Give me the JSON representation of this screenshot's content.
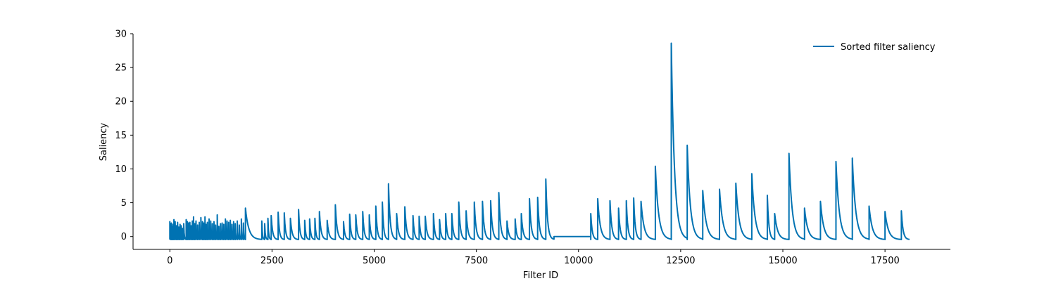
{
  "chart_data": {
    "type": "line",
    "title": "",
    "xlabel": "Filter ID",
    "ylabel": "Saliency",
    "xlim": [
      -900,
      19100
    ],
    "ylim": [
      -1.9,
      30
    ],
    "xticks": [
      0,
      2500,
      5000,
      7500,
      10000,
      12500,
      15000,
      17500
    ],
    "xtick_labels": [
      "0",
      "2500",
      "5000",
      "7500",
      "10000",
      "12500",
      "15000",
      "17500"
    ],
    "yticks": [
      0,
      5,
      10,
      15,
      20,
      25,
      30
    ],
    "ytick_labels": [
      "0",
      "5",
      "10",
      "15",
      "20",
      "25",
      "30"
    ],
    "grid": false,
    "legend_position": "top-right",
    "series": [
      {
        "name": "Sorted filter saliency",
        "color": "#0072b2",
        "baseline": -0.45,
        "segments": [
          {
            "x": [
              0,
              20,
              40,
              60,
              80,
              100,
              130,
              160,
              190,
              220,
              250,
              280,
              310,
              340,
              400,
              430,
              460,
              490,
              520,
              550,
              580,
              610,
              640,
              680,
              720,
              760,
              800,
              830,
              860,
              890,
              920,
              960,
              1000,
              1040,
              1080,
              1120,
              1160,
              1200,
              1240,
              1280,
              1320,
              1360,
              1400,
              1440,
              1480,
              1520,
              1560,
              1600,
              1650,
              1700,
              1750,
              1800,
              1850
            ],
            "peaks": [
              2.2,
              1.9,
              2.0,
              1.5,
              1.8,
              2.5,
              2.2,
              1.6,
              2.1,
              1.4,
              1.8,
              1.6,
              1.2,
              1.9,
              2.5,
              2.2,
              2.0,
              2.1,
              1.6,
              2.3,
              2.9,
              1.9,
              2.3,
              1.7,
              2.1,
              2.8,
              2.2,
              2.0,
              2.9,
              1.8,
              2.1,
              2.6,
              2.3,
              1.9,
              2.2,
              1.7,
              3.2,
              1.5,
              1.9,
              2.0,
              1.8,
              2.6,
              2.3,
              2.1,
              2.4,
              1.8,
              2.2,
              1.9,
              2.3,
              1.7,
              2.6,
              2.0,
              4.2
            ]
          },
          {
            "x": [
              2250,
              2320,
              2400,
              2480,
              2650,
              2800,
              2950,
              3150,
              3300,
              3420,
              3550,
              3660,
              3850,
              4050,
              4250,
              4400,
              4550,
              4720,
              4880,
              5040,
              5200,
              5350,
              5550,
              5750,
              5950,
              6100,
              6250,
              6450,
              6600,
              6750,
              6900,
              7070,
              7250,
              7450,
              7650,
              7850,
              8050
            ],
            "peaks": [
              2.3,
              1.9,
              2.7,
              3.1,
              3.6,
              3.5,
              2.7,
              4.0,
              2.4,
              2.6,
              2.7,
              3.7,
              2.4,
              4.7,
              2.2,
              3.3,
              3.2,
              3.7,
              3.2,
              4.5,
              5.1,
              7.8,
              3.4,
              4.4,
              3.1,
              3.0,
              3.0,
              3.4,
              2.5,
              3.4,
              3.4,
              5.1,
              3.8,
              5.1,
              5.2,
              5.3,
              6.5
            ]
          },
          {
            "x": [
              8250,
              8450,
              8600,
              8800,
              9000,
              9200
            ],
            "peaks": [
              2.3,
              2.6,
              3.4,
              5.6,
              5.8,
              8.5
            ]
          },
          {
            "x": [
              10300,
              10470,
              10770,
              10980,
              11170,
              11350,
              11530
            ],
            "peaks": [
              3.4,
              5.6,
              5.3,
              4.2,
              5.3,
              5.7,
              5.2
            ]
          },
          {
            "x": [
              11880,
              12270,
              12660,
              13040,
              13450,
              13850,
              14240,
              14620,
              14800,
              15150,
              15530,
              15920,
              16300,
              16700,
              17110,
              17500,
              17900
            ],
            "peaks": [
              10.4,
              28.6,
              13.5,
              6.8,
              7.0,
              7.9,
              9.3,
              6.1,
              3.4,
              12.3,
              4.2,
              5.2,
              11.1,
              11.6,
              4.5,
              3.7,
              3.8
            ]
          }
        ],
        "plateau": {
          "x_start": 9400,
          "x_end": 10300,
          "value": 0.0
        },
        "x_end": 18100
      }
    ]
  },
  "colors": {
    "series": "#0072b2",
    "axis": "#000000",
    "background": "#ffffff"
  }
}
